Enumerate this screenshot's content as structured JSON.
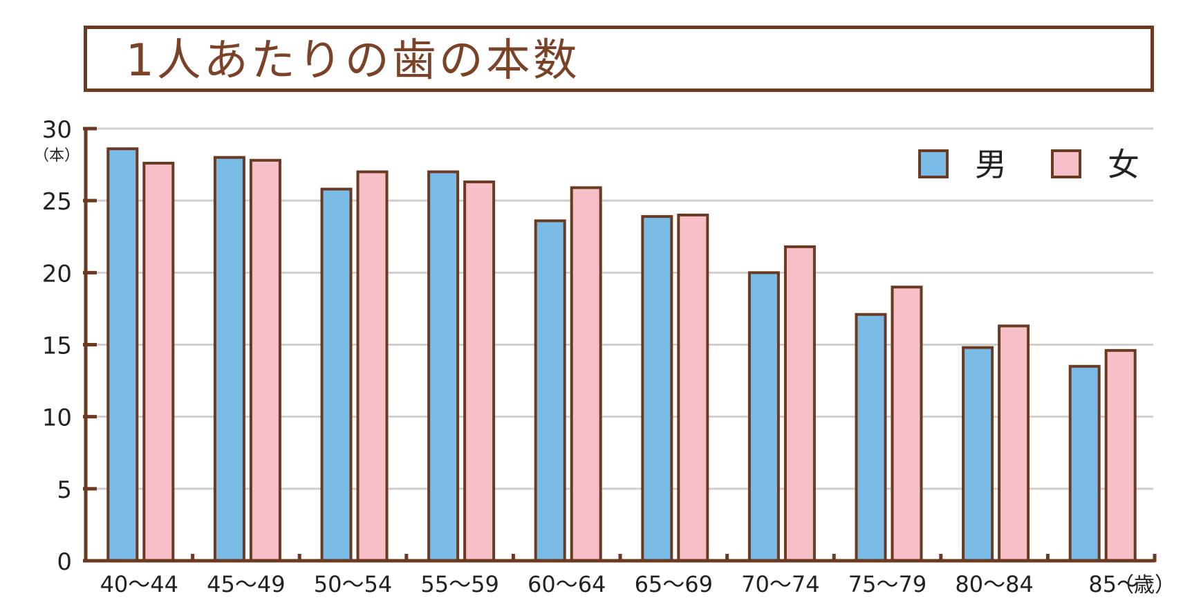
{
  "title": "1人あたりの歯の本数",
  "colors": {
    "frame": "#6b3a23",
    "title_text": "#7a4329",
    "male": "#7bbce6",
    "female": "#f7bfc8",
    "grid": "#cfcfcf",
    "text": "#222222"
  },
  "chart_data": {
    "type": "bar",
    "title": "1人あたりの歯の本数",
    "ylabel_unit": "（本）",
    "xlabel_unit": "（歳）",
    "categories": [
      "40～44",
      "45～49",
      "50～54",
      "55～59",
      "60～64",
      "65～69",
      "70～74",
      "75～79",
      "80～84",
      "85～"
    ],
    "series": [
      {
        "name": "男",
        "color": "#7bbce6",
        "values": [
          28.6,
          28.0,
          25.8,
          27.0,
          23.6,
          23.9,
          20.0,
          17.1,
          14.8,
          13.5
        ]
      },
      {
        "name": "女",
        "color": "#f7bfc8",
        "values": [
          27.6,
          27.8,
          27.0,
          26.3,
          25.9,
          24.0,
          21.8,
          19.0,
          16.3,
          14.6
        ]
      }
    ],
    "ylim": [
      0,
      30
    ],
    "yticks": [
      0,
      5,
      10,
      15,
      20,
      25,
      30
    ],
    "grid": true,
    "legend": "top-right"
  }
}
